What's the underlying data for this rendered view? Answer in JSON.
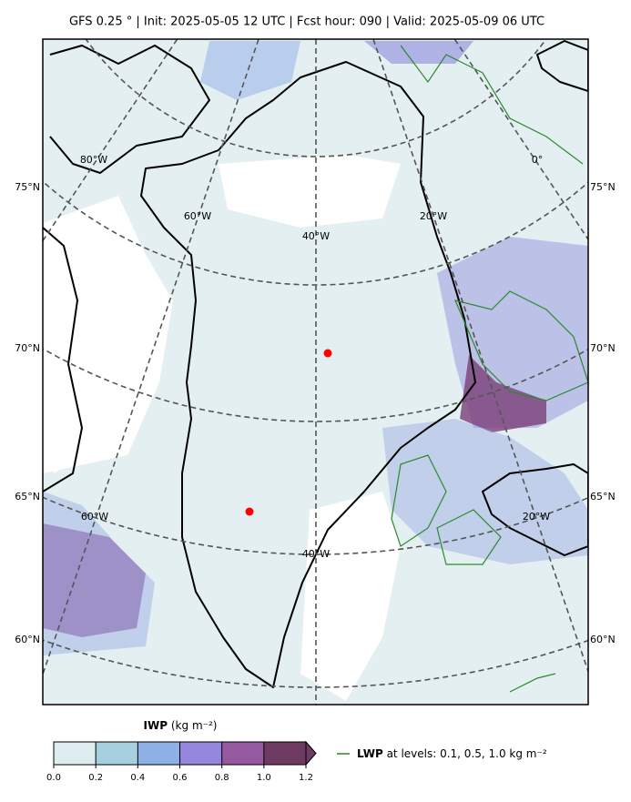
{
  "header": {
    "title": "GFS 0.25 °  |  Init: 2025-05-05 12 UTC  |  Fcst hour: 090  |  Valid: 2025-05-09 06 UTC"
  },
  "map": {
    "lat_labels": [
      "75°N",
      "70°N",
      "65°N",
      "60°N"
    ],
    "lon_labels_upper": [
      "80°W",
      "60°W",
      "40°W",
      "20°W",
      "0°"
    ],
    "lon_labels_lower": [
      "60°W",
      "40°W",
      "20°W"
    ]
  },
  "colorbar": {
    "label": "IWP",
    "unit": "(kg m⁻²)",
    "lim": [
      0,
      1.2
    ],
    "ticks": [
      {
        "value": 0,
        "label": "0.0"
      },
      0.2,
      0.4,
      0.6,
      0.8,
      {
        "value": 1,
        "label": "1.0"
      },
      1.2
    ],
    "colors": [
      "#dcecef",
      "#a6cfe0",
      "#8fb0e6",
      "#9486dc",
      "#94599f",
      "#6e3a62"
    ],
    "extend_color": "#6e3a62"
  },
  "legend": {
    "label": "LWP",
    "text": "at levels: 0.1, 0.5, 1.0  kg m⁻²",
    "color": "#2a8a2a"
  }
}
